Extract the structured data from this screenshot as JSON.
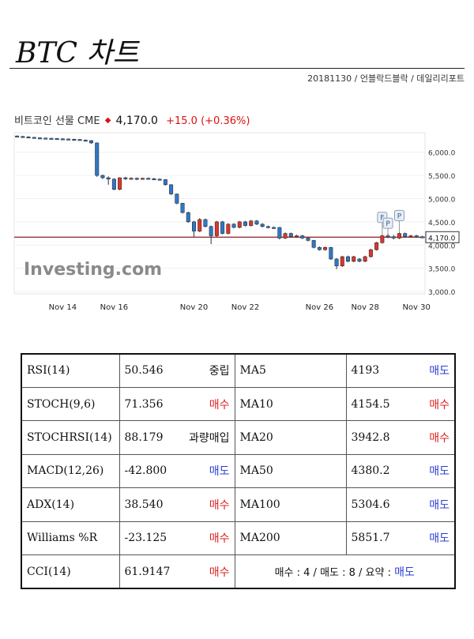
{
  "page": {
    "title": "BTC 차트",
    "byline": "20181130 / 언블락드블락 / 데일리리포트"
  },
  "chart_header": {
    "name": "비트코인 선물 CME",
    "price": "4,170.0",
    "change": "+15.0  (+0.36%)"
  },
  "colors": {
    "up": "#d9372e",
    "down": "#2f77c6",
    "current_line": "#8b1e1e",
    "buy": "#e02020",
    "sell": "#2a3fd6"
  },
  "chart_data": {
    "type": "candlestick",
    "watermark": "Investing.com",
    "y_axis": {
      "ticks": [
        6000,
        5500,
        5000,
        4500,
        4000,
        3500,
        3000
      ],
      "tick_labels": [
        "6,000.0",
        "5,500.0",
        "5,000.0",
        "4,500.0",
        "4,000.0",
        "3,500.0",
        "3,000.0"
      ],
      "range": [
        2950,
        6420
      ]
    },
    "x_axis": {
      "labels": [
        "Nov 14",
        "Nov 16",
        "Nov 20",
        "Nov 22",
        "Nov 26",
        "Nov 28",
        "Nov 30"
      ],
      "label_index": [
        8,
        17,
        31,
        40,
        53,
        61,
        70
      ]
    },
    "current_price": 4170.0,
    "current_label": "4,170.0",
    "markers": [
      "F",
      "P",
      "P"
    ],
    "marker_index": [
      64,
      65,
      67
    ],
    "candles": [
      [
        6350,
        6340,
        6360,
        6330
      ],
      [
        6340,
        6330,
        6350,
        6320
      ],
      [
        6330,
        6320,
        6345,
        6310
      ],
      [
        6320,
        6310,
        6330,
        6300
      ],
      [
        6310,
        6305,
        6320,
        6295
      ],
      [
        6305,
        6300,
        6315,
        6290
      ],
      [
        6300,
        6295,
        6310,
        6285
      ],
      [
        6295,
        6290,
        6305,
        6280
      ],
      [
        6290,
        6285,
        6300,
        6275
      ],
      [
        6285,
        6280,
        6295,
        6270
      ],
      [
        6280,
        6270,
        6290,
        6260
      ],
      [
        6275,
        6260,
        6285,
        6250
      ],
      [
        6260,
        6250,
        6275,
        6240
      ],
      [
        6250,
        6200,
        6260,
        6180
      ],
      [
        6200,
        5500,
        6210,
        5470
      ],
      [
        5500,
        5450,
        5520,
        5420
      ],
      [
        5450,
        5420,
        5480,
        5300
      ],
      [
        5420,
        5200,
        5440,
        5180
      ],
      [
        5200,
        5450,
        5460,
        5180
      ],
      [
        5450,
        5430,
        5470,
        5400
      ],
      [
        5430,
        5440,
        5460,
        5410
      ],
      [
        5440,
        5420,
        5455,
        5400
      ],
      [
        5420,
        5440,
        5450,
        5410
      ],
      [
        5440,
        5430,
        5455,
        5415
      ],
      [
        5430,
        5420,
        5445,
        5405
      ],
      [
        5420,
        5410,
        5435,
        5395
      ],
      [
        5410,
        5300,
        5420,
        5280
      ],
      [
        5300,
        5100,
        5310,
        5080
      ],
      [
        5100,
        4900,
        5110,
        4880
      ],
      [
        4900,
        4700,
        4910,
        4680
      ],
      [
        4700,
        4500,
        4720,
        4480
      ],
      [
        4500,
        4300,
        4520,
        4180
      ],
      [
        4300,
        4550,
        4580,
        4280
      ],
      [
        4550,
        4400,
        4570,
        4380
      ],
      [
        4400,
        4200,
        4420,
        4020
      ],
      [
        4200,
        4500,
        4520,
        4180
      ],
      [
        4500,
        4250,
        4520,
        4230
      ],
      [
        4250,
        4450,
        4470,
        4230
      ],
      [
        4450,
        4380,
        4470,
        4360
      ],
      [
        4380,
        4500,
        4520,
        4360
      ],
      [
        4500,
        4420,
        4520,
        4400
      ],
      [
        4420,
        4520,
        4540,
        4400
      ],
      [
        4520,
        4450,
        4540,
        4430
      ],
      [
        4450,
        4400,
        4470,
        4380
      ],
      [
        4400,
        4380,
        4420,
        4360
      ],
      [
        4380,
        4370,
        4400,
        4350
      ],
      [
        4380,
        4150,
        4390,
        4120
      ],
      [
        4150,
        4250,
        4270,
        4130
      ],
      [
        4250,
        4180,
        4270,
        4160
      ],
      [
        4180,
        4200,
        4220,
        4160
      ],
      [
        4200,
        4150,
        4220,
        4130
      ],
      [
        4150,
        4100,
        4170,
        4080
      ],
      [
        4100,
        3950,
        4110,
        3930
      ],
      [
        3950,
        3900,
        3970,
        3880
      ],
      [
        3900,
        3950,
        3970,
        3880
      ],
      [
        3950,
        3700,
        3960,
        3680
      ],
      [
        3700,
        3550,
        3720,
        3480
      ],
      [
        3550,
        3750,
        3770,
        3530
      ],
      [
        3750,
        3650,
        3770,
        3630
      ],
      [
        3650,
        3750,
        3770,
        3630
      ],
      [
        3700,
        3650,
        3720,
        3630
      ],
      [
        3650,
        3750,
        3770,
        3630
      ],
      [
        3750,
        3900,
        3920,
        3730
      ],
      [
        3900,
        4050,
        4070,
        3880
      ],
      [
        4050,
        4200,
        4230,
        4030
      ],
      [
        4200,
        4180,
        4240,
        4150
      ],
      [
        4180,
        4150,
        4220,
        4120
      ],
      [
        4150,
        4250,
        4270,
        4130
      ],
      [
        4250,
        4180,
        4270,
        4160
      ],
      [
        4180,
        4200,
        4220,
        4160
      ],
      [
        4200,
        4180,
        4220,
        4160
      ],
      [
        4180,
        4170,
        4200,
        4150
      ]
    ]
  },
  "indicators": {
    "rows": [
      {
        "name": "RSI(14)",
        "value": "50.546",
        "signal": "중립",
        "sig_type": "neutral",
        "ma_name": "MA5",
        "ma_value": "4193",
        "ma_signal": "매도",
        "ma_type": "sell"
      },
      {
        "name": "STOCH(9,6)",
        "value": "71.356",
        "signal": "매수",
        "sig_type": "buy",
        "ma_name": "MA10",
        "ma_value": "4154.5",
        "ma_signal": "매수",
        "ma_type": "buy"
      },
      {
        "name": "STOCHRSI(14)",
        "value": "88.179",
        "signal": "과량매입",
        "sig_type": "neutral",
        "ma_name": "MA20",
        "ma_value": "3942.8",
        "ma_signal": "매수",
        "ma_type": "buy"
      },
      {
        "name": "MACD(12,26)",
        "value": "-42.800",
        "signal": "매도",
        "sig_type": "sell",
        "ma_name": "MA50",
        "ma_value": "4380.2",
        "ma_signal": "매도",
        "ma_type": "sell"
      },
      {
        "name": "ADX(14)",
        "value": "38.540",
        "signal": "매수",
        "sig_type": "buy",
        "ma_name": "MA100",
        "ma_value": "5304.6",
        "ma_signal": "매도",
        "ma_type": "sell"
      },
      {
        "name": "Williams %R",
        "value": "-23.125",
        "signal": "매수",
        "sig_type": "buy",
        "ma_name": "MA200",
        "ma_value": "5851.7",
        "ma_signal": "매도",
        "ma_type": "sell"
      }
    ],
    "last": {
      "name": "CCI(14)",
      "value": "61.9147",
      "signal": "매수",
      "sig_type": "buy"
    },
    "summary_text": "매수 : 4 / 매도 : 8 / 요약 : ",
    "summary_result": "매도"
  }
}
